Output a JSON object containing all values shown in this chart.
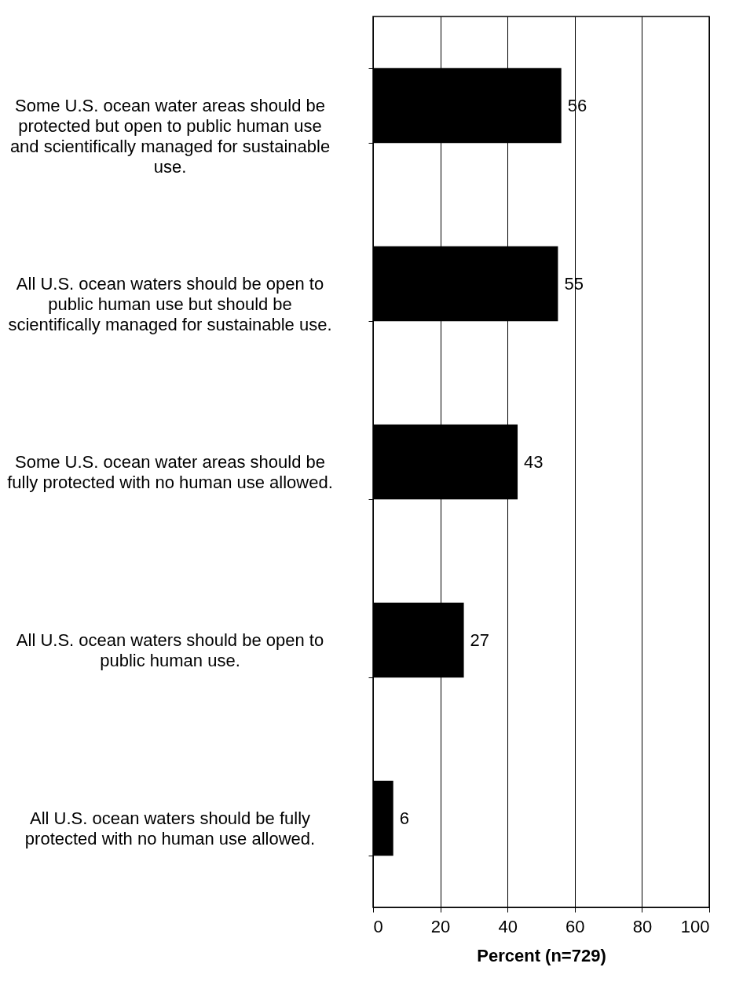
{
  "chart_data": {
    "type": "bar",
    "orientation": "horizontal",
    "xlabel": "Percent (n=729)",
    "categories": [
      "Some U.S. ocean water areas should be protected but open to public human use and scientifically managed for sustainable use.",
      "All U.S. ocean waters should be open to public human use but should be scientifically managed for sustainable use.",
      "Some U.S. ocean water areas should be fully protected with no human use allowed.",
      "All U.S. ocean waters should be open to public human use.",
      "All U.S. ocean waters should be fully protected with no human use allowed."
    ],
    "values": [
      56,
      55,
      43,
      27,
      6
    ],
    "color": "#000000",
    "xlim": [
      0,
      100
    ],
    "xticks": [
      0,
      20,
      40,
      60,
      80,
      100
    ],
    "grid": "x",
    "data_labels": true
  }
}
